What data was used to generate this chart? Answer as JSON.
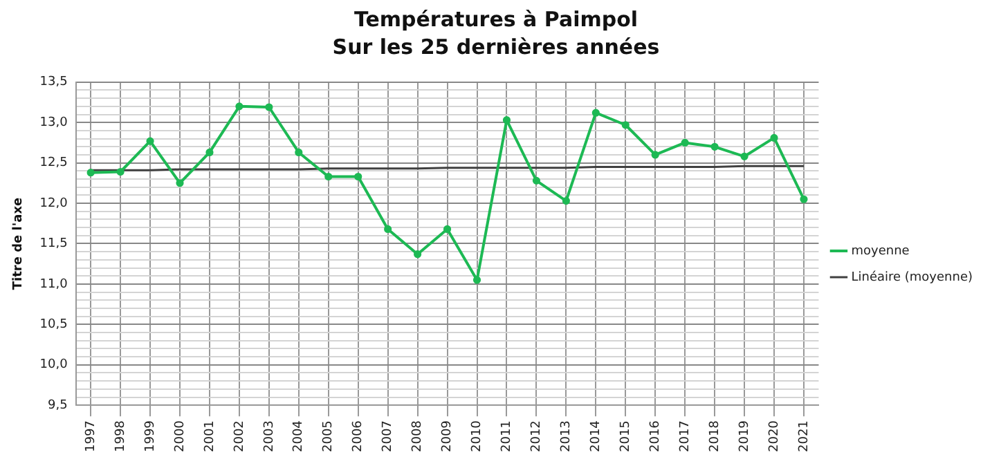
{
  "chart_data": {
    "type": "line",
    "title": "Températures à Paimpol",
    "subtitle": "Sur les  25 dernières années",
    "ylabel": "Titre de l'axe",
    "categories": [
      "1997",
      "1998",
      "1999",
      "2000",
      "2001",
      "2002",
      "2003",
      "2004",
      "2005",
      "2006",
      "2007",
      "2008",
      "2009",
      "2010",
      "2011",
      "2012",
      "2013",
      "2014",
      "2015",
      "2016",
      "2017",
      "2018",
      "2019",
      "2020",
      "2021"
    ],
    "series": [
      {
        "name": "moyenne",
        "color": "#1db954",
        "marker": "circle",
        "values": [
          12.38,
          12.39,
          12.77,
          12.25,
          12.63,
          13.2,
          13.19,
          12.63,
          12.33,
          12.33,
          11.68,
          11.37,
          11.68,
          11.05,
          13.03,
          12.28,
          12.03,
          13.12,
          12.97,
          12.6,
          12.75,
          12.7,
          12.58,
          12.81,
          12.05
        ]
      },
      {
        "name": "Linéaire (moyenne)",
        "color": "#404040",
        "marker": "none",
        "values": [
          12.41,
          12.41,
          12.41,
          12.42,
          12.42,
          12.42,
          12.42,
          12.42,
          12.43,
          12.43,
          12.43,
          12.43,
          12.44,
          12.44,
          12.44,
          12.44,
          12.44,
          12.45,
          12.45,
          12.45,
          12.45,
          12.45,
          12.46,
          12.46,
          12.46
        ]
      }
    ],
    "ylim": [
      9.5,
      13.5
    ],
    "yticks": [
      {
        "value": 9.5,
        "label": "9,5"
      },
      {
        "value": 9.6,
        "label": null
      },
      {
        "value": 9.7,
        "label": null
      },
      {
        "value": 9.8,
        "label": null
      },
      {
        "value": 9.9,
        "label": null
      },
      {
        "value": 10,
        "label": "10,0"
      },
      {
        "value": 10.1,
        "label": null
      },
      {
        "value": 10.2,
        "label": null
      },
      {
        "value": 10.3,
        "label": null
      },
      {
        "value": 10.4,
        "label": null
      },
      {
        "value": 10.5,
        "label": "10,5"
      },
      {
        "value": 10.6,
        "label": null
      },
      {
        "value": 10.7,
        "label": null
      },
      {
        "value": 10.8,
        "label": null
      },
      {
        "value": 10.9,
        "label": null
      },
      {
        "value": 11,
        "label": "11,0"
      },
      {
        "value": 11.1,
        "label": null
      },
      {
        "value": 11.2,
        "label": null
      },
      {
        "value": 11.3,
        "label": null
      },
      {
        "value": 11.4,
        "label": null
      },
      {
        "value": 11.5,
        "label": "11,5"
      },
      {
        "value": 11.6,
        "label": null
      },
      {
        "value": 11.7,
        "label": null
      },
      {
        "value": 11.8,
        "label": null
      },
      {
        "value": 11.9,
        "label": null
      },
      {
        "value": 12,
        "label": "12,0"
      },
      {
        "value": 12.1,
        "label": null
      },
      {
        "value": 12.2,
        "label": null
      },
      {
        "value": 12.3,
        "label": null
      },
      {
        "value": 12.4,
        "label": null
      },
      {
        "value": 12.5,
        "label": "12,5"
      },
      {
        "value": 12.6,
        "label": null
      },
      {
        "value": 12.7,
        "label": null
      },
      {
        "value": 12.8,
        "label": null
      },
      {
        "value": 12.9,
        "label": null
      },
      {
        "value": 13,
        "label": "13,0"
      },
      {
        "value": 13.1,
        "label": null
      },
      {
        "value": 13.2,
        "label": null
      },
      {
        "value": 13.3,
        "label": null
      },
      {
        "value": 13.4,
        "label": null
      },
      {
        "value": 13.5,
        "label": "13,5"
      }
    ],
    "grid": true,
    "legend": "right"
  }
}
